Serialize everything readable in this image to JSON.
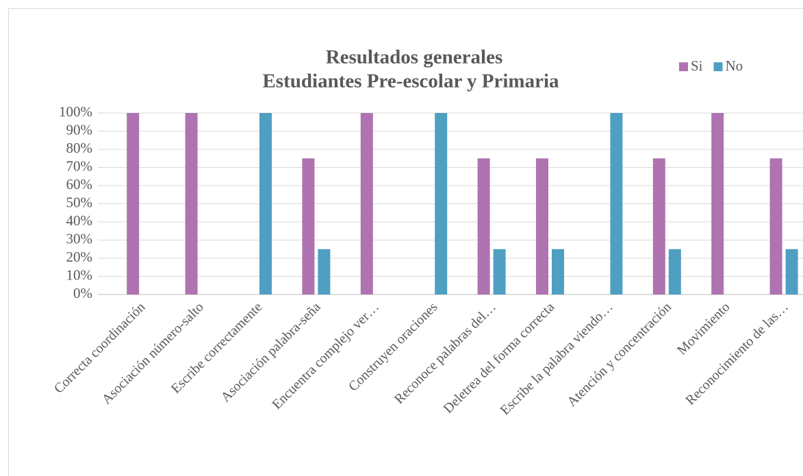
{
  "chart_data": {
    "type": "bar",
    "title": [
      "Resultados generales",
      "Estudiantes Pre-escolar y Primaria"
    ],
    "categories": [
      "Correcta coordinación",
      "Asociación número-salto",
      "Escribe correctamente",
      "Asociación palabra-seña",
      "Encuentra complejo ver…",
      "Construyen oraciones",
      "Reconoce palabras del…",
      "Deletrea del forma correcta",
      "Escribe la palabra viendo…",
      "Atención y concentración",
      "Movimiento",
      "Reconocimiento de las…"
    ],
    "series": [
      {
        "name": "Si",
        "color": "#ae73b0",
        "values": [
          100,
          100,
          0,
          75,
          100,
          0,
          75,
          75,
          0,
          75,
          100,
          75
        ]
      },
      {
        "name": "No",
        "color": "#4f9fc2",
        "values": [
          0,
          0,
          100,
          25,
          0,
          100,
          25,
          25,
          100,
          25,
          0,
          25
        ]
      }
    ],
    "ylim": [
      0,
      100
    ],
    "yticks": [
      {
        "value": 0,
        "label": "0%"
      },
      {
        "value": 10,
        "label": "10%"
      },
      {
        "value": 20,
        "label": "20%"
      },
      {
        "value": 30,
        "label": "30%"
      },
      {
        "value": 40,
        "label": "40%"
      },
      {
        "value": 50,
        "label": "50%"
      },
      {
        "value": 60,
        "label": "60%"
      },
      {
        "value": 70,
        "label": "70%"
      },
      {
        "value": 80,
        "label": "80%"
      },
      {
        "value": 90,
        "label": "90%"
      },
      {
        "value": 100,
        "label": "100%"
      }
    ],
    "grid": true,
    "legend": "top-right"
  }
}
